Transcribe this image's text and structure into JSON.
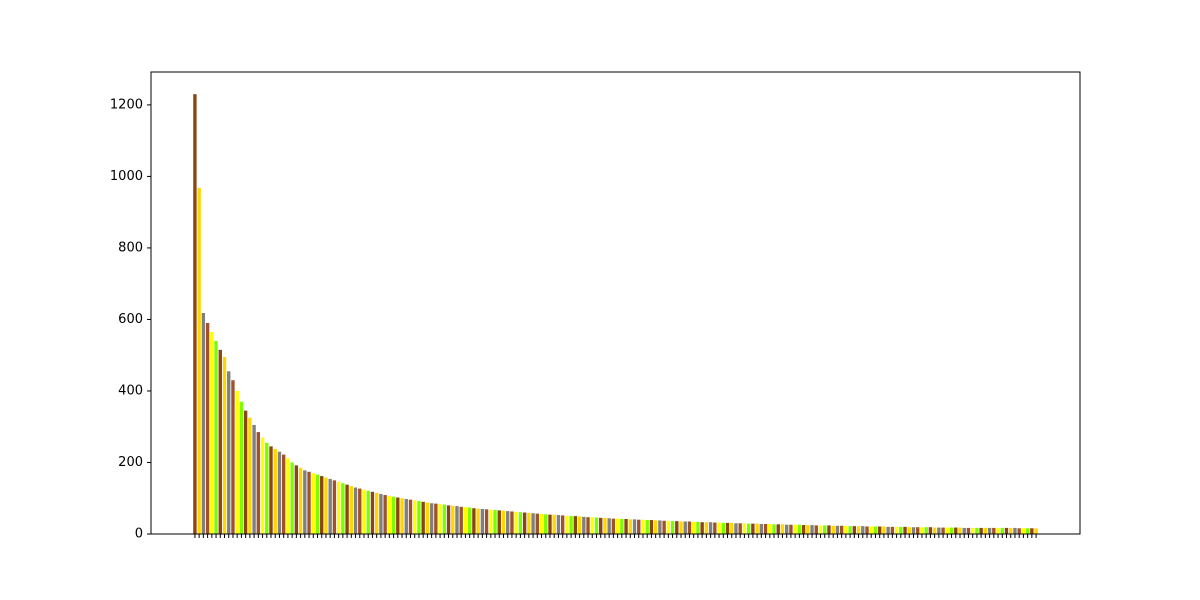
{
  "chart_data": {
    "type": "bar",
    "categories": [
      null,
      null,
      null,
      null,
      null,
      null,
      null,
      null,
      null,
      null,
      null,
      null,
      null,
      null,
      null,
      null,
      null,
      null,
      null,
      null,
      null,
      null,
      null,
      null,
      null,
      null,
      null,
      null,
      null,
      null,
      null,
      null,
      null,
      null,
      null,
      null,
      null,
      null,
      null,
      null,
      null,
      null,
      null,
      null,
      null,
      null,
      null,
      null,
      null,
      null,
      null,
      null,
      null,
      null,
      null,
      null,
      null,
      null,
      null,
      null,
      null,
      null,
      null,
      null,
      null,
      null,
      null,
      null,
      null,
      null,
      null,
      null,
      null,
      null,
      null,
      null,
      null,
      null,
      null,
      null,
      null,
      null,
      null,
      null,
      null,
      null,
      null,
      null,
      null,
      null,
      null,
      null,
      null,
      null,
      null,
      null,
      null,
      null,
      null,
      null,
      null,
      null,
      null,
      null,
      null,
      null,
      null,
      null,
      null,
      null,
      null,
      null,
      null,
      null,
      null,
      null,
      null,
      null,
      null,
      null,
      null,
      null,
      null,
      null,
      null,
      null,
      null,
      null,
      null,
      null,
      null,
      null,
      null,
      null,
      null,
      null,
      null,
      null,
      null,
      null,
      null,
      null,
      null,
      null,
      null,
      null,
      null,
      null,
      null,
      null,
      null,
      null,
      null,
      null,
      null,
      null,
      null,
      null,
      null,
      null,
      null,
      null,
      null,
      null,
      null,
      null,
      null,
      null,
      null,
      null,
      null,
      null,
      null,
      null,
      null,
      null,
      null,
      null,
      null,
      null,
      null,
      null,
      null,
      null,
      null,
      null,
      null,
      null,
      null,
      null,
      null,
      null,
      null,
      null,
      null,
      null,
      null,
      null,
      null,
      null
    ],
    "values": [
      1230,
      968,
      618,
      590,
      565,
      540,
      515,
      495,
      455,
      430,
      400,
      370,
      345,
      325,
      305,
      285,
      270,
      255,
      245,
      238,
      230,
      222,
      212,
      200,
      192,
      185,
      178,
      174,
      170,
      166,
      162,
      158,
      154,
      150,
      146,
      142,
      138,
      134,
      130,
      127,
      124,
      121,
      118,
      115,
      112,
      109,
      106,
      104,
      102,
      100,
      98,
      96,
      94,
      92,
      90,
      88,
      86,
      85,
      84,
      82,
      80,
      79,
      78,
      76,
      75,
      74,
      72,
      71,
      70,
      69,
      68,
      67,
      66,
      65,
      64,
      63,
      62,
      61,
      60,
      59,
      58,
      57,
      56,
      55,
      54,
      54,
      53,
      52,
      51,
      50,
      50,
      49,
      48,
      47,
      47,
      46,
      45,
      45,
      44,
      43,
      43,
      42,
      42,
      41,
      41,
      40,
      40,
      39,
      39,
      38,
      38,
      37,
      37,
      36,
      36,
      35,
      35,
      35,
      34,
      34,
      33,
      33,
      33,
      32,
      32,
      31,
      31,
      31,
      30,
      30,
      30,
      29,
      29,
      29,
      28,
      28,
      28,
      27,
      27,
      27,
      26,
      26,
      26,
      26,
      25,
      25,
      25,
      24,
      24,
      24,
      24,
      23,
      23,
      23,
      23,
      22,
      22,
      22,
      22,
      21,
      21,
      21,
      21,
      21,
      20,
      20,
      20,
      20,
      20,
      19,
      19,
      19,
      19,
      19,
      19,
      18,
      18,
      18,
      18,
      18,
      18,
      18,
      17,
      17,
      17,
      17,
      17,
      17,
      17,
      17,
      17,
      17,
      17,
      17,
      17,
      16,
      16,
      16,
      16,
      16
    ],
    "palette": [
      "#8b4513",
      "#ffd700",
      "#808080",
      "#a0522d",
      "#ffff00",
      "#7cfc00"
    ],
    "ylim": [
      0,
      1292
    ],
    "yticks": [
      0,
      200,
      400,
      600,
      800,
      1000,
      1200
    ],
    "grid": false
  }
}
